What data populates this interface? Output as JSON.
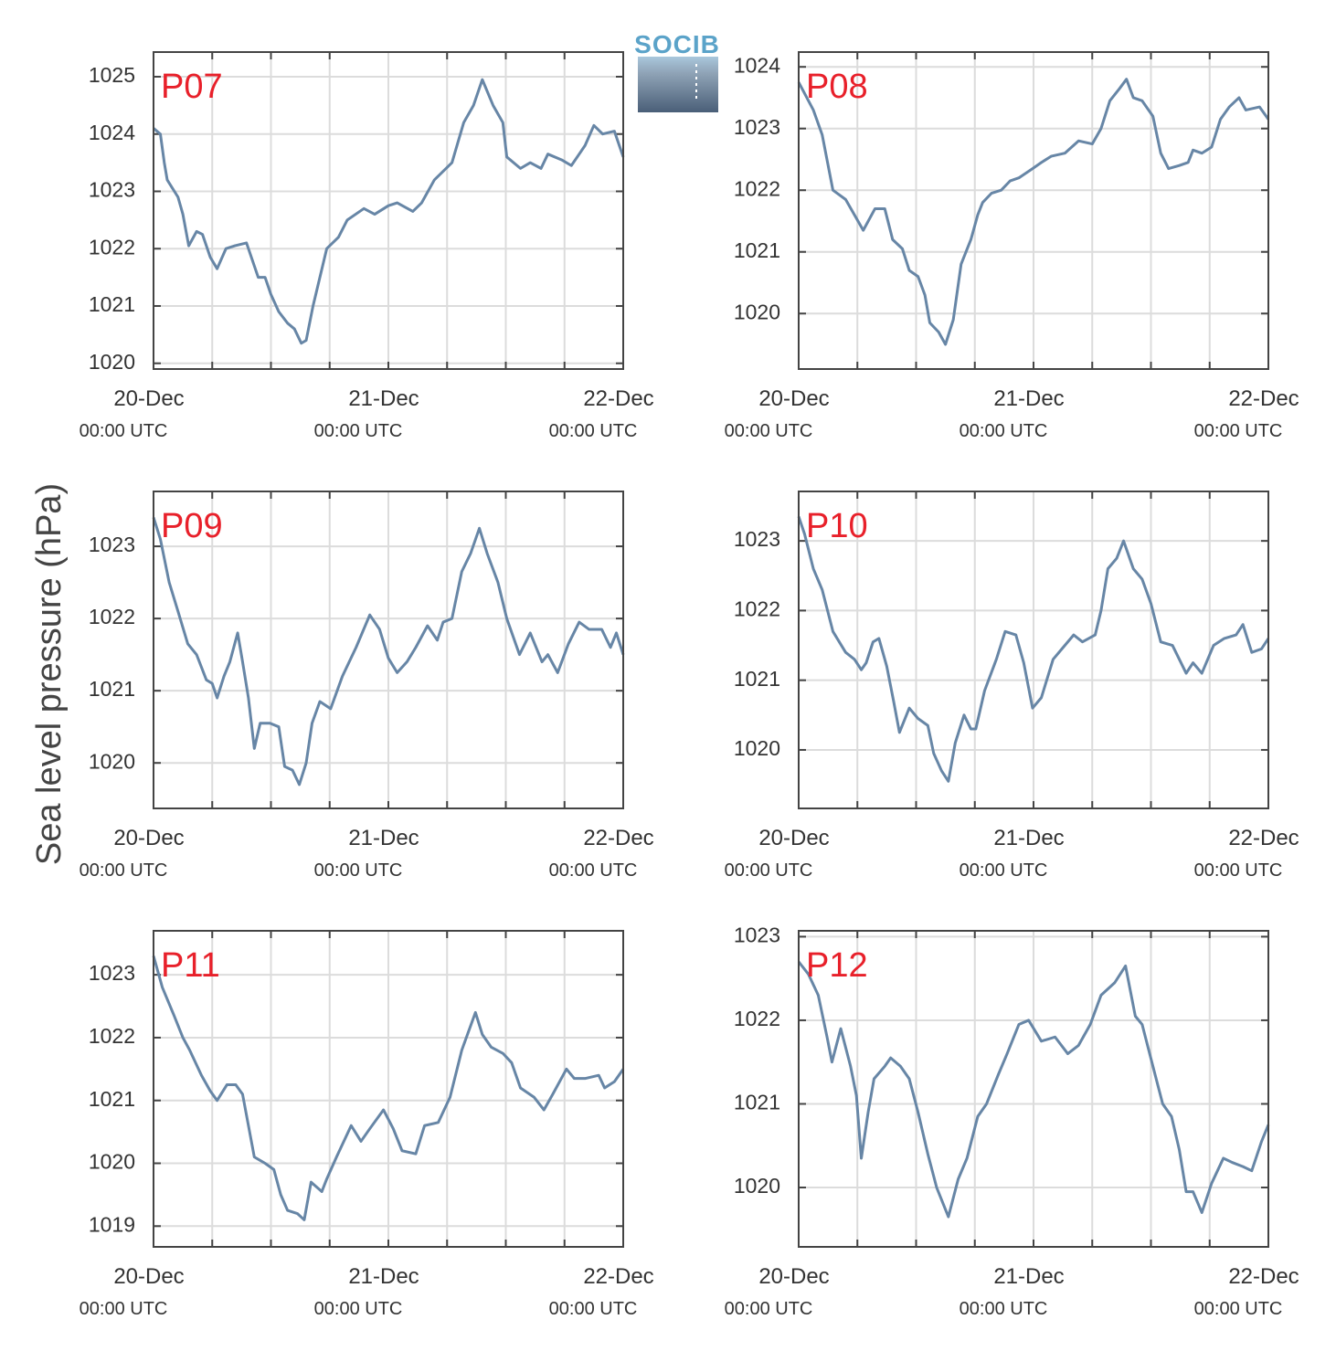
{
  "ylabel": "Sea level pressure (hPa)",
  "logo": "SOCIB",
  "chart_data": [
    {
      "type": "line",
      "title": "P07",
      "color": "#6786a6",
      "grid": true,
      "x": [
        0,
        0.7,
        1.1,
        1.4,
        2.5,
        3.0,
        3.6,
        4.4,
        5.0,
        5.8,
        6.5,
        7.4,
        8.3,
        9.5,
        10.7,
        11.4,
        12.0,
        12.8,
        13.7,
        14.4,
        15.1,
        15.6,
        16.3,
        17.0,
        17.7,
        18.9,
        19.8,
        21.5,
        22.6,
        24.0,
        24.9,
        26.5,
        27.4,
        28.7,
        30.5,
        31.7,
        32.7,
        33.6,
        34.7,
        35.7,
        36.1,
        37.5,
        38.5,
        39.6,
        40.3,
        41.7,
        42.7,
        44.1,
        45.0,
        45.9,
        47.1,
        48
      ],
      "values": [
        1024.1,
        1024.0,
        1023.5,
        1023.2,
        1022.9,
        1022.6,
        1022.05,
        1022.3,
        1022.25,
        1021.85,
        1021.65,
        1022.0,
        1022.05,
        1022.1,
        1021.5,
        1021.5,
        1021.2,
        1020.9,
        1020.7,
        1020.6,
        1020.35,
        1020.4,
        1021.0,
        1021.5,
        1022.0,
        1022.2,
        1022.5,
        1022.7,
        1022.6,
        1022.75,
        1022.8,
        1022.65,
        1022.8,
        1023.2,
        1023.5,
        1024.2,
        1024.5,
        1024.95,
        1024.5,
        1024.2,
        1023.6,
        1023.4,
        1023.5,
        1023.4,
        1023.65,
        1023.55,
        1023.45,
        1023.8,
        1024.15,
        1024.0,
        1024.05,
        1023.6
      ],
      "xlim": [
        0,
        48
      ],
      "xticks": [
        {
          "value": 0,
          "label": "20-Dec\n00:00 UTC"
        },
        {
          "value": 24,
          "label": "21-Dec\n00:00 UTC"
        },
        {
          "value": 48,
          "label": "22-Dec\n00:00 UTC"
        }
      ],
      "xminorticks": [
        6,
        12,
        18,
        30,
        36,
        42
      ],
      "ylim": [
        1019.9,
        1025.43
      ],
      "yticks": [
        1020,
        1021,
        1022,
        1023,
        1024,
        1025
      ]
    },
    {
      "type": "line",
      "title": "P08",
      "color": "#6786a6",
      "grid": true,
      "x": [
        0,
        1.5,
        2.4,
        3.5,
        4.8,
        5.7,
        6.6,
        7.8,
        8.8,
        9.6,
        10.6,
        11.3,
        12.2,
        12.9,
        13.4,
        14.3,
        15.0,
        15.8,
        16.6,
        17.6,
        18.3,
        18.8,
        19.7,
        20.7,
        21.6,
        22.5,
        23.9,
        24.8,
        25.8,
        27.2,
        28.6,
        30.0,
        30.9,
        31.8,
        32.8,
        33.5,
        34.2,
        35.1,
        36.2,
        37.0,
        37.8,
        38.9,
        39.8,
        40.3,
        41.2,
        42.2,
        43.1,
        44.0,
        45.0,
        45.7,
        47.1,
        48
      ],
      "values": [
        1023.75,
        1023.3,
        1022.9,
        1022.0,
        1021.85,
        1021.6,
        1021.35,
        1021.7,
        1021.7,
        1021.2,
        1021.05,
        1020.7,
        1020.6,
        1020.3,
        1019.85,
        1019.7,
        1019.5,
        1019.9,
        1020.8,
        1021.2,
        1021.6,
        1021.8,
        1021.95,
        1022.0,
        1022.15,
        1022.2,
        1022.35,
        1022.45,
        1022.55,
        1022.6,
        1022.8,
        1022.75,
        1023.0,
        1023.45,
        1023.65,
        1023.8,
        1023.5,
        1023.45,
        1023.2,
        1022.6,
        1022.35,
        1022.4,
        1022.45,
        1022.65,
        1022.6,
        1022.7,
        1023.15,
        1023.35,
        1023.5,
        1023.3,
        1023.35,
        1023.15
      ],
      "xlim": [
        0,
        48
      ],
      "xticks": [
        {
          "value": 0,
          "label": "20-Dec\n00:00 UTC"
        },
        {
          "value": 24,
          "label": "21-Dec\n00:00 UTC"
        },
        {
          "value": 48,
          "label": "22-Dec\n00:00 UTC"
        }
      ],
      "xminorticks": [
        6,
        12,
        18,
        30,
        36,
        42
      ],
      "ylim": [
        1019.1,
        1024.24
      ],
      "yticks": [
        1020,
        1021,
        1022,
        1023,
        1024
      ]
    },
    {
      "type": "line",
      "title": "P09",
      "color": "#6786a6",
      "grid": true,
      "x": [
        0,
        0.7,
        1.6,
        2.5,
        3.5,
        4.4,
        5.4,
        6.0,
        6.5,
        7.2,
        7.8,
        8.6,
        9.1,
        9.7,
        10.3,
        10.9,
        11.9,
        12.8,
        13.4,
        14.2,
        14.9,
        15.6,
        16.2,
        17.0,
        18.1,
        19.3,
        20.7,
        22.1,
        23.1,
        24.0,
        24.9,
        25.9,
        26.8,
        28.0,
        29.0,
        29.6,
        30.5,
        31.5,
        32.4,
        33.3,
        34.1,
        35.2,
        36.1,
        37.4,
        38.5,
        39.7,
        40.3,
        41.3,
        42.4,
        43.5,
        44.5,
        45.8,
        46.7,
        47.3,
        48
      ],
      "values": [
        1023.4,
        1023.1,
        1022.5,
        1022.1,
        1021.65,
        1021.5,
        1021.15,
        1021.1,
        1020.9,
        1021.2,
        1021.4,
        1021.8,
        1021.4,
        1020.9,
        1020.2,
        1020.55,
        1020.55,
        1020.5,
        1019.95,
        1019.9,
        1019.7,
        1020.0,
        1020.55,
        1020.85,
        1020.75,
        1021.2,
        1021.6,
        1022.05,
        1021.85,
        1021.45,
        1021.25,
        1021.4,
        1021.6,
        1021.9,
        1021.7,
        1021.95,
        1022.0,
        1022.65,
        1022.9,
        1023.25,
        1022.9,
        1022.5,
        1022.0,
        1021.5,
        1021.8,
        1021.4,
        1021.5,
        1021.25,
        1021.65,
        1021.95,
        1021.85,
        1021.85,
        1021.6,
        1021.8,
        1021.5
      ],
      "xlim": [
        0,
        48
      ],
      "xticks": [
        {
          "value": 0,
          "label": "20-Dec\n00:00 UTC"
        },
        {
          "value": 24,
          "label": "21-Dec\n00:00 UTC"
        },
        {
          "value": 48,
          "label": "22-Dec\n00:00 UTC"
        }
      ],
      "xminorticks": [
        6,
        12,
        18,
        30,
        36,
        42
      ],
      "ylim": [
        1019.37,
        1023.76
      ],
      "yticks": [
        1020,
        1021,
        1022,
        1023
      ]
    },
    {
      "type": "line",
      "title": "P10",
      "color": "#6786a6",
      "grid": true,
      "x": [
        0,
        0.6,
        1.5,
        2.4,
        3.5,
        4.8,
        5.7,
        6.4,
        6.9,
        7.6,
        8.2,
        9.0,
        9.7,
        10.3,
        11.3,
        12.2,
        13.2,
        13.8,
        14.6,
        15.3,
        16.0,
        16.9,
        17.6,
        18.1,
        19.0,
        20.2,
        21.1,
        22.2,
        23.0,
        23.9,
        24.8,
        26.0,
        26.9,
        28.1,
        29.0,
        30.3,
        30.9,
        31.6,
        32.5,
        33.2,
        34.2,
        35.1,
        36.0,
        37.0,
        38.2,
        39.6,
        40.3,
        41.2,
        42.4,
        43.5,
        44.7,
        45.4,
        46.3,
        47.3,
        48
      ],
      "values": [
        1023.35,
        1023.1,
        1022.6,
        1022.3,
        1021.7,
        1021.4,
        1021.3,
        1021.15,
        1021.25,
        1021.55,
        1021.6,
        1021.2,
        1020.7,
        1020.25,
        1020.6,
        1020.45,
        1020.35,
        1019.95,
        1019.7,
        1019.55,
        1020.1,
        1020.5,
        1020.3,
        1020.3,
        1020.85,
        1021.3,
        1021.7,
        1021.65,
        1021.25,
        1020.6,
        1020.75,
        1021.3,
        1021.45,
        1021.65,
        1021.55,
        1021.65,
        1022.0,
        1022.6,
        1022.75,
        1023.0,
        1022.6,
        1022.45,
        1022.1,
        1021.55,
        1021.5,
        1021.1,
        1021.25,
        1021.1,
        1021.5,
        1021.6,
        1021.65,
        1021.8,
        1021.4,
        1021.45,
        1021.6
      ],
      "xlim": [
        0,
        48
      ],
      "xticks": [
        {
          "value": 0,
          "label": "20-Dec\n00:00 UTC"
        },
        {
          "value": 24,
          "label": "21-Dec\n00:00 UTC"
        },
        {
          "value": 48,
          "label": "22-Dec\n00:00 UTC"
        }
      ],
      "xminorticks": [
        6,
        12,
        18,
        30,
        36,
        42
      ],
      "ylim": [
        1019.16,
        1023.71
      ],
      "yticks": [
        1020,
        1021,
        1022,
        1023
      ]
    },
    {
      "type": "line",
      "title": "P11",
      "color": "#6786a6",
      "grid": true,
      "x": [
        0,
        0.9,
        2.1,
        3.0,
        3.7,
        4.9,
        5.8,
        6.5,
        7.5,
        8.4,
        9.1,
        9.7,
        10.3,
        11.4,
        12.3,
        13.0,
        13.7,
        14.7,
        15.4,
        16.1,
        17.2,
        17.7,
        18.7,
        19.3,
        20.2,
        21.2,
        22.1,
        23.5,
        24.5,
        25.4,
        26.8,
        27.7,
        29.1,
        30.3,
        31.5,
        32.9,
        33.6,
        34.5,
        35.7,
        36.6,
        37.5,
        38.9,
        39.9,
        40.8,
        42.2,
        43.0,
        44.1,
        45.5,
        46.1,
        47.1,
        48
      ],
      "values": [
        1023.3,
        1022.8,
        1022.35,
        1022.0,
        1021.8,
        1021.4,
        1021.15,
        1021.0,
        1021.25,
        1021.25,
        1021.1,
        1020.6,
        1020.1,
        1020.0,
        1019.9,
        1019.5,
        1019.25,
        1019.2,
        1019.1,
        1019.7,
        1019.55,
        1019.75,
        1020.1,
        1020.3,
        1020.6,
        1020.35,
        1020.55,
        1020.85,
        1020.55,
        1020.2,
        1020.15,
        1020.6,
        1020.65,
        1021.05,
        1021.8,
        1022.4,
        1022.05,
        1021.85,
        1021.75,
        1021.6,
        1021.2,
        1021.05,
        1020.85,
        1021.1,
        1021.5,
        1021.35,
        1021.35,
        1021.4,
        1021.2,
        1021.3,
        1021.5
      ],
      "xlim": [
        0,
        48
      ],
      "xticks": [
        {
          "value": 0,
          "label": "20-Dec\n00:00 UTC"
        },
        {
          "value": 24,
          "label": "21-Dec\n00:00 UTC"
        },
        {
          "value": 48,
          "label": "22-Dec\n00:00 UTC"
        }
      ],
      "xminorticks": [
        6,
        12,
        18,
        30,
        36,
        42
      ],
      "ylim": [
        1018.67,
        1023.7
      ],
      "yticks": [
        1019,
        1020,
        1021,
        1022,
        1023
      ]
    },
    {
      "type": "line",
      "title": "P12",
      "color": "#6786a6",
      "grid": true,
      "x": [
        0,
        1.0,
        2.0,
        2.9,
        3.4,
        4.3,
        5.3,
        5.9,
        6.4,
        7.1,
        7.7,
        8.8,
        9.4,
        10.4,
        11.3,
        12.2,
        13.2,
        14.1,
        15.3,
        16.3,
        17.2,
        18.3,
        19.2,
        20.4,
        21.3,
        22.5,
        23.5,
        24.8,
        26.2,
        27.5,
        28.6,
        29.8,
        30.9,
        32.3,
        33.4,
        34.4,
        35.1,
        36.2,
        37.2,
        38.1,
        38.9,
        39.6,
        40.3,
        41.2,
        42.2,
        43.4,
        44.3,
        45.4,
        46.3,
        47.3,
        48
      ],
      "values": [
        1022.7,
        1022.55,
        1022.3,
        1021.8,
        1021.5,
        1021.9,
        1021.45,
        1021.1,
        1020.35,
        1020.9,
        1021.3,
        1021.45,
        1021.55,
        1021.45,
        1021.3,
        1020.9,
        1020.4,
        1020.0,
        1019.65,
        1020.1,
        1020.35,
        1020.85,
        1021.0,
        1021.35,
        1021.6,
        1021.95,
        1022.0,
        1021.75,
        1021.8,
        1021.6,
        1021.7,
        1021.95,
        1022.3,
        1022.45,
        1022.65,
        1022.05,
        1021.95,
        1021.45,
        1021.0,
        1020.85,
        1020.45,
        1019.95,
        1019.95,
        1019.7,
        1020.05,
        1020.35,
        1020.3,
        1020.25,
        1020.2,
        1020.55,
        1020.75
      ],
      "xlim": [
        0,
        48
      ],
      "xticks": [
        {
          "value": 0,
          "label": "20-Dec\n00:00 UTC"
        },
        {
          "value": 24,
          "label": "21-Dec\n00:00 UTC"
        },
        {
          "value": 48,
          "label": "22-Dec\n00:00 UTC"
        }
      ],
      "xminorticks": [
        6,
        12,
        18,
        30,
        36,
        42
      ],
      "ylim": [
        1019.29,
        1023.07
      ],
      "yticks": [
        1020,
        1021,
        1022,
        1023
      ]
    }
  ]
}
